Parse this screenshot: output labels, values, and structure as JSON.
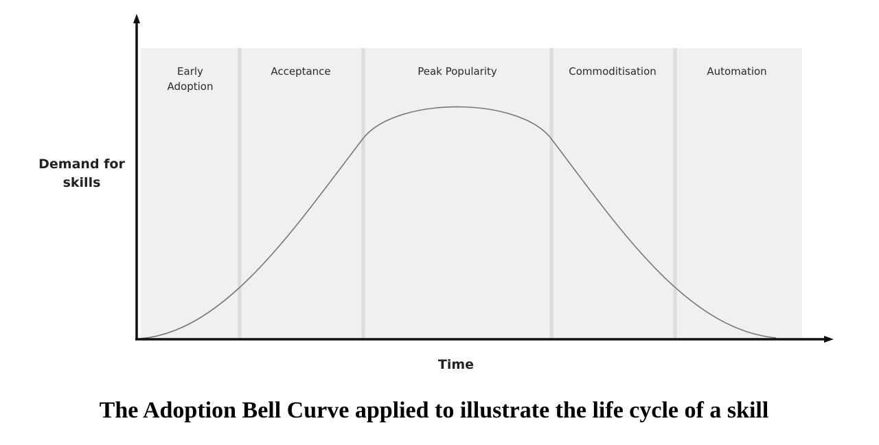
{
  "diagram": {
    "phases": [
      "Early Adoption",
      "Acceptance",
      "Peak Popularity",
      "Commoditisation",
      "Automation"
    ],
    "y_axis_label": "Demand for skills",
    "x_axis_label": "Time"
  },
  "caption": "The Adoption Bell Curve applied to illustrate the life cycle of a skill"
}
